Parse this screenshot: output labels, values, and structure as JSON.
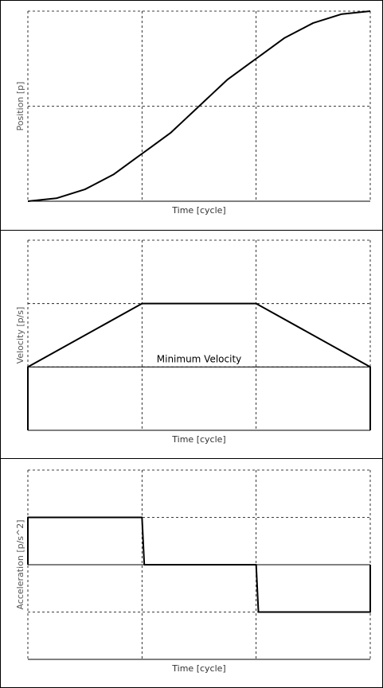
{
  "chart_data": [
    {
      "type": "line",
      "title": "",
      "xlabel": "Time [cycle]",
      "ylabel": "Position [p]",
      "tick_labels_shown": false,
      "grid": "dashed, 3 vertical divisions, 2 horizontal divisions",
      "series": [
        {
          "x": [
            0,
            0.25,
            0.5,
            0.75,
            1,
            1.25,
            1.5,
            1.75,
            2,
            2.25,
            2.5,
            2.75,
            3
          ],
          "values": [
            0,
            0.0625,
            0.25,
            0.5625,
            1,
            1.4375,
            2,
            2.5625,
            3,
            3.4375,
            3.75,
            3.9375,
            4
          ]
        }
      ],
      "xlim": [
        0,
        3
      ],
      "ylim": [
        0,
        4
      ]
    },
    {
      "type": "line",
      "title": "",
      "xlabel": "Time [cycle]",
      "ylabel": "Velocity [p/s]",
      "tick_labels_shown": false,
      "grid": "dashed, 3 vertical divisions, 3 horizontal divisions",
      "annotation": "Minimum Velocity",
      "reference_line": {
        "y": 1
      },
      "series": [
        {
          "x": [
            0,
            0,
            1,
            2,
            3,
            3
          ],
          "values": [
            0,
            1,
            2,
            2,
            1,
            0
          ]
        }
      ],
      "xlim": [
        0,
        3
      ],
      "ylim": [
        0,
        3
      ]
    },
    {
      "type": "line",
      "title": "",
      "xlabel": "Time [cycle]",
      "ylabel": "Acceleration [p/s^2]",
      "tick_labels_shown": false,
      "grid": "dashed, 3 vertical divisions, 4 horizontal divisions",
      "reference_line": {
        "y": 0
      },
      "series": [
        {
          "x": [
            0,
            0,
            1,
            1.02,
            2,
            2.02,
            3,
            3
          ],
          "values": [
            0,
            1,
            1,
            0,
            0,
            -1,
            -1,
            0
          ]
        }
      ],
      "xlim": [
        0,
        3
      ],
      "ylim": [
        -2,
        2
      ]
    }
  ]
}
